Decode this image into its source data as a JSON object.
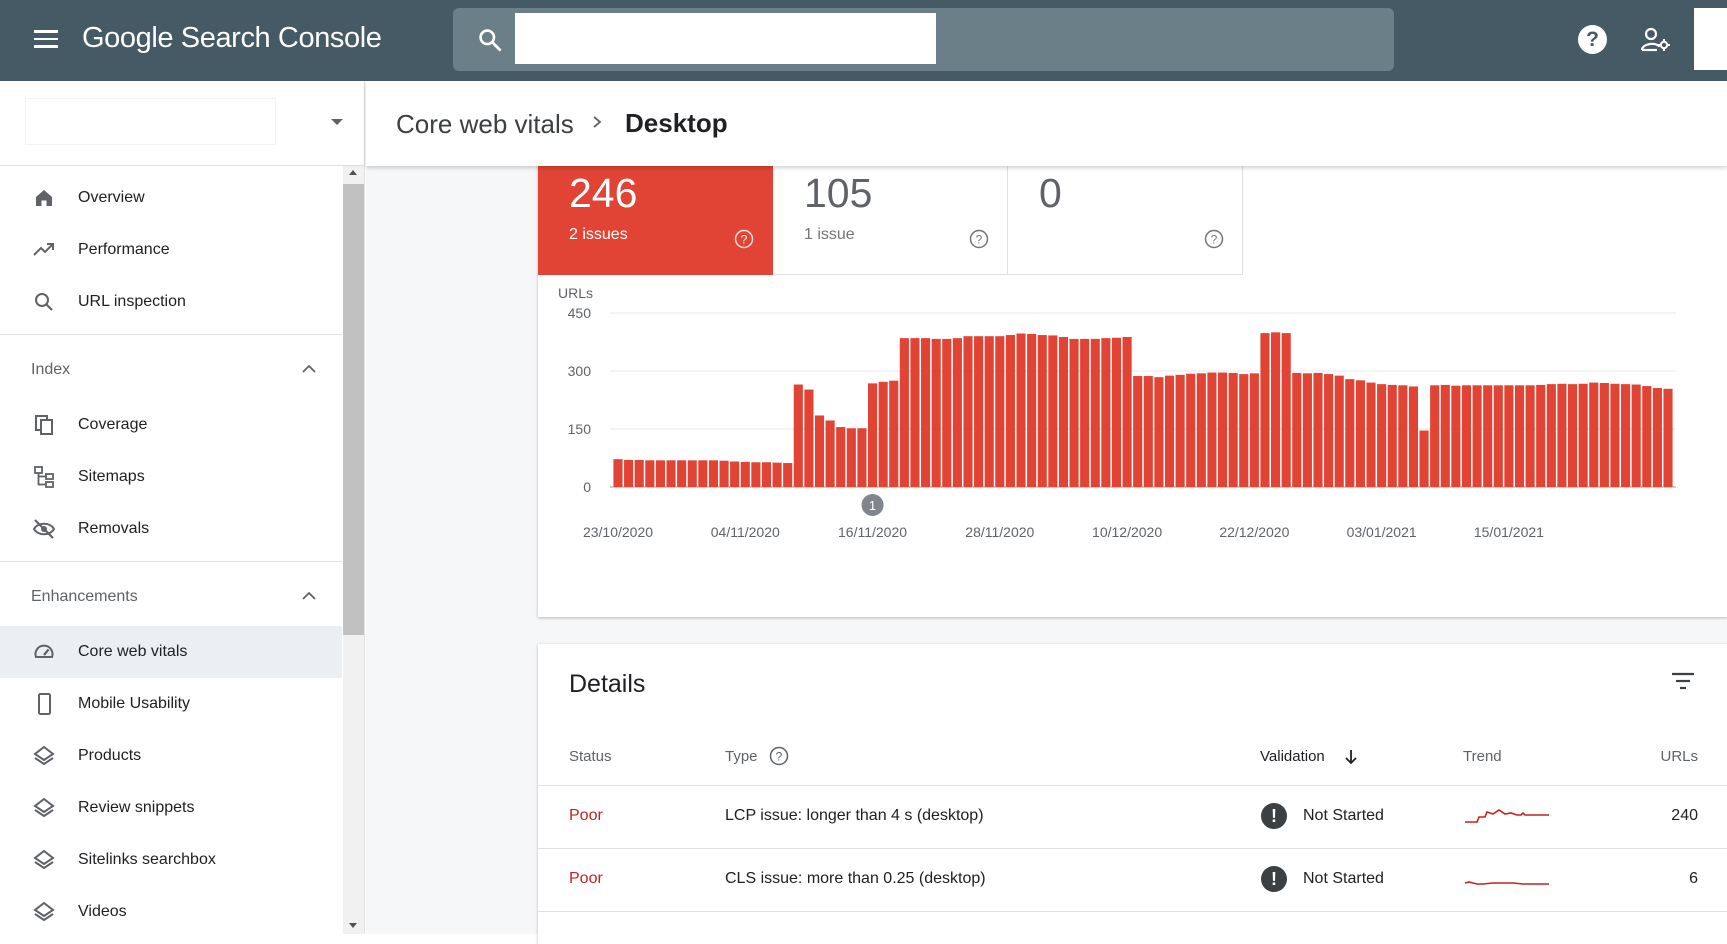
{
  "app": {
    "title": "Google Search Console",
    "title_google": "Google",
    "title_rest": " Search Console"
  },
  "search": {
    "value": "",
    "placeholder": ""
  },
  "header": {
    "breadcrumb_parent": "Core web vitals",
    "breadcrumb_current": "Desktop"
  },
  "sidebar": {
    "items_top": [
      {
        "label": "Overview",
        "icon": "home-icon"
      },
      {
        "label": "Performance",
        "icon": "trending-up-icon"
      },
      {
        "label": "URL inspection",
        "icon": "search-icon"
      }
    ],
    "index_section": "Index",
    "index_items": [
      {
        "label": "Coverage",
        "icon": "coverage-icon"
      },
      {
        "label": "Sitemaps",
        "icon": "sitemap-icon"
      },
      {
        "label": "Removals",
        "icon": "removals-icon"
      }
    ],
    "enhancements_section": "Enhancements",
    "enhancement_items": [
      {
        "label": "Core web vitals",
        "icon": "speedometer-icon",
        "active": true
      },
      {
        "label": "Mobile Usability",
        "icon": "phone-icon"
      },
      {
        "label": "Products",
        "icon": "layers-icon"
      },
      {
        "label": "Review snippets",
        "icon": "layers-icon"
      },
      {
        "label": "Sitelinks searchbox",
        "icon": "layers-icon"
      },
      {
        "label": "Videos",
        "icon": "layers-icon"
      }
    ]
  },
  "summary": {
    "poor": {
      "value": "246",
      "sub": "2 issues",
      "color": "#e14434"
    },
    "needs_improvement": {
      "value": "105",
      "sub": "1 issue"
    },
    "good": {
      "value": "0",
      "sub": ""
    }
  },
  "chart_data": {
    "type": "bar",
    "ylabel": "URLs",
    "ylim": [
      0,
      450
    ],
    "yticks": [
      0,
      150,
      300,
      450
    ],
    "xticks": [
      "23/10/2020",
      "04/11/2020",
      "16/11/2020",
      "28/11/2020",
      "10/12/2020",
      "22/12/2020",
      "03/01/2021",
      "15/01/2021"
    ],
    "annotation": {
      "label": "1",
      "index": 24
    },
    "bar_color": "#e14434",
    "values": [
      72,
      70,
      70,
      69,
      69,
      69,
      69,
      69,
      69,
      69,
      68,
      66,
      65,
      64,
      64,
      63,
      62,
      265,
      252,
      185,
      172,
      155,
      152,
      152,
      268,
      272,
      275,
      385,
      385,
      385,
      383,
      383,
      385,
      390,
      390,
      390,
      390,
      393,
      397,
      396,
      393,
      392,
      388,
      383,
      383,
      383,
      385,
      386,
      388,
      287,
      287,
      284,
      288,
      290,
      293,
      294,
      296,
      296,
      295,
      292,
      294,
      398,
      400,
      398,
      295,
      294,
      295,
      292,
      288,
      279,
      276,
      270,
      266,
      264,
      263,
      260,
      146,
      263,
      264,
      262,
      263,
      263,
      263,
      263,
      263,
      263,
      263,
      264,
      266,
      267,
      266,
      267,
      270,
      269,
      267,
      266,
      265,
      261,
      256,
      254
    ]
  },
  "details": {
    "title": "Details",
    "headers": {
      "status": "Status",
      "type": "Type",
      "validation": "Validation",
      "trend": "Trend",
      "urls": "URLs"
    },
    "rows": [
      {
        "status": "Poor",
        "type": "LCP issue: longer than 4 s (desktop)",
        "validation": "Not Started",
        "urls": "240"
      },
      {
        "status": "Poor",
        "type": "CLS issue: more than 0.25 (desktop)",
        "validation": "Not Started",
        "urls": "6"
      }
    ]
  }
}
